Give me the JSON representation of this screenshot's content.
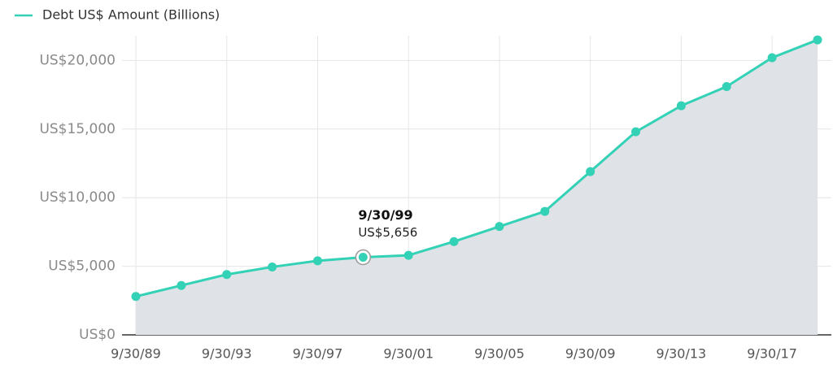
{
  "chart_data": {
    "type": "area",
    "series": [
      {
        "name": "Debt US$ Amount (Billions)",
        "color": "#33d1b5",
        "fill": "#dfe2e7",
        "values": [
          2800,
          3600,
          4400,
          4950,
          5400,
          5656,
          5800,
          6800,
          7900,
          9000,
          11900,
          14800,
          16700,
          18100,
          20200,
          21500
        ]
      }
    ],
    "categories": [
      "9/30/89",
      null,
      "9/30/93",
      null,
      "9/30/97",
      null,
      "9/30/01",
      null,
      "9/30/05",
      null,
      "9/30/09",
      null,
      "9/30/13",
      null,
      "9/30/17",
      null
    ],
    "ylim": [
      0,
      21800
    ],
    "yticks": [
      {
        "value": 0,
        "label": "US$0"
      },
      {
        "value": 5000,
        "label": "US$5,000"
      },
      {
        "value": 10000,
        "label": "US$10,000"
      },
      {
        "value": 15000,
        "label": "US$15,000"
      },
      {
        "value": 20000,
        "label": "US$20,000"
      }
    ],
    "grid": true,
    "legend": "top-left",
    "tooltip": {
      "index": 5,
      "title": "9/30/99",
      "value_label": "US$5,656"
    }
  }
}
